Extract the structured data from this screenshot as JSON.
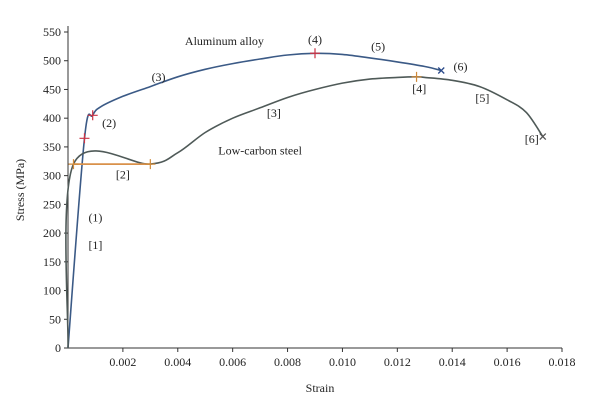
{
  "chart_data": {
    "type": "line",
    "xlabel": "Strain",
    "ylabel": "Stress (MPa)",
    "xlim": [
      0,
      0.018
    ],
    "ylim": [
      0,
      550
    ],
    "x_ticks": [
      "0.002",
      "0.004",
      "0.006",
      "0.008",
      "0.010",
      "0.012",
      "0.014",
      "0.016",
      "0.018"
    ],
    "y_ticks": [
      "0",
      "50",
      "100",
      "150",
      "200",
      "250",
      "300",
      "350",
      "400",
      "450",
      "500",
      "550"
    ],
    "grid": false,
    "series": [
      {
        "name": "Aluminum alloy",
        "color": "#3b5a86",
        "points": [
          [
            0,
            0
          ],
          [
            0.0006,
            365
          ],
          [
            0.0009,
            405
          ],
          [
            0.0012,
            420
          ],
          [
            0.002,
            438
          ],
          [
            0.003,
            455
          ],
          [
            0.004,
            472
          ],
          [
            0.005,
            485
          ],
          [
            0.006,
            495
          ],
          [
            0.007,
            503
          ],
          [
            0.008,
            510
          ],
          [
            0.009,
            513
          ],
          [
            0.01,
            511
          ],
          [
            0.011,
            505
          ],
          [
            0.012,
            498
          ],
          [
            0.013,
            490
          ],
          [
            0.0136,
            483
          ]
        ]
      },
      {
        "name": "Low-carbon steel",
        "color": "#4f5a58",
        "points": [
          [
            0,
            0
          ],
          [
            0.0002,
            320
          ],
          [
            0.003,
            320
          ],
          [
            0.004,
            340
          ],
          [
            0.005,
            375
          ],
          [
            0.006,
            400
          ],
          [
            0.007,
            418
          ],
          [
            0.008,
            436
          ],
          [
            0.009,
            450
          ],
          [
            0.01,
            461
          ],
          [
            0.011,
            468
          ],
          [
            0.012,
            471
          ],
          [
            0.0127,
            472
          ],
          [
            0.013,
            471
          ],
          [
            0.014,
            466
          ],
          [
            0.015,
            455
          ],
          [
            0.016,
            432
          ],
          [
            0.0167,
            410
          ],
          [
            0.0173,
            368
          ]
        ]
      }
    ],
    "markers": [
      {
        "x": 0.0006,
        "y": 365,
        "color": "#cc3344",
        "kind": "tick"
      },
      {
        "x": 0.0009,
        "y": 405,
        "color": "#cc3344",
        "kind": "tick"
      },
      {
        "x": 0.009,
        "y": 513,
        "color": "#cc3344",
        "kind": "tick"
      },
      {
        "x": 0.0136,
        "y": 483,
        "color": "#2b4a8a",
        "kind": "cross"
      },
      {
        "x": 0.0002,
        "y": 320,
        "color": "#d08a3a",
        "kind": "tick"
      },
      {
        "x": 0.003,
        "y": 320,
        "color": "#d08a3a",
        "kind": "tick"
      },
      {
        "x": 0.0127,
        "y": 472,
        "color": "#d08a3a",
        "kind": "tick"
      },
      {
        "x": 0.0173,
        "y": 368,
        "color": "#555555",
        "kind": "cross"
      }
    ],
    "annotations": [
      {
        "text": "Aluminum alloy",
        "x": 0.0057,
        "y": 527
      },
      {
        "text": "(1)",
        "x": 0.001,
        "y": 220
      },
      {
        "text": "[1]",
        "x": 0.001,
        "y": 172
      },
      {
        "text": "(2)",
        "x": 0.0015,
        "y": 385
      },
      {
        "text": "[2]",
        "x": 0.002,
        "y": 295
      },
      {
        "text": "(3)",
        "x": 0.0033,
        "y": 465
      },
      {
        "text": "[3]",
        "x": 0.0075,
        "y": 402
      },
      {
        "text": "(4)",
        "x": 0.009,
        "y": 530
      },
      {
        "text": "(5)",
        "x": 0.0113,
        "y": 518
      },
      {
        "text": "(6)",
        "x": 0.0143,
        "y": 483
      },
      {
        "text": "[4]",
        "x": 0.0128,
        "y": 445
      },
      {
        "text": "[5]",
        "x": 0.0151,
        "y": 428
      },
      {
        "text": "[6]",
        "x": 0.0169,
        "y": 357
      },
      {
        "text": "Low-carbon steel",
        "x": 0.007,
        "y": 337
      }
    ]
  }
}
